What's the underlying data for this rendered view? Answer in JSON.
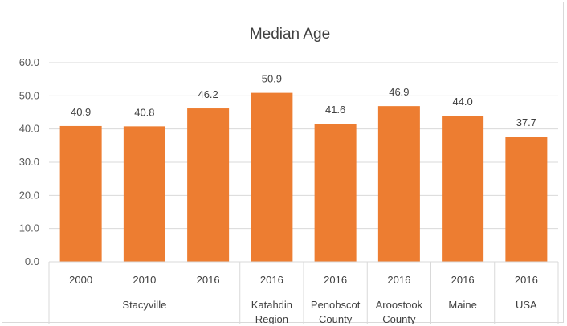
{
  "chart_data": {
    "type": "bar",
    "title": "Median Age",
    "categories": [
      "2000",
      "2010",
      "2016",
      "2016",
      "2016",
      "2016",
      "2016",
      "2016"
    ],
    "groups": [
      {
        "label": [
          "Stacyville"
        ],
        "span": 3
      },
      {
        "label": [
          "Katahdin",
          "Region"
        ],
        "span": 1
      },
      {
        "label": [
          "Penobscot",
          "County"
        ],
        "span": 1
      },
      {
        "label": [
          "Aroostook",
          "County"
        ],
        "span": 1
      },
      {
        "label": [
          "Maine"
        ],
        "span": 1
      },
      {
        "label": [
          "USA"
        ],
        "span": 1
      }
    ],
    "values": [
      40.9,
      40.8,
      46.2,
      50.9,
      41.6,
      46.9,
      44.0,
      37.7
    ],
    "data_labels": [
      "40.9",
      "40.8",
      "46.2",
      "50.9",
      "41.6",
      "46.9",
      "44.0",
      "37.7"
    ],
    "ylim": [
      0,
      60
    ],
    "yticks": [
      "0.0",
      "10.0",
      "20.0",
      "30.0",
      "40.0",
      "50.0",
      "60.0"
    ],
    "grid": true,
    "bar_color": "#ed7d31",
    "grid_color": "#d9d9d9",
    "xlabel": "",
    "ylabel": ""
  }
}
